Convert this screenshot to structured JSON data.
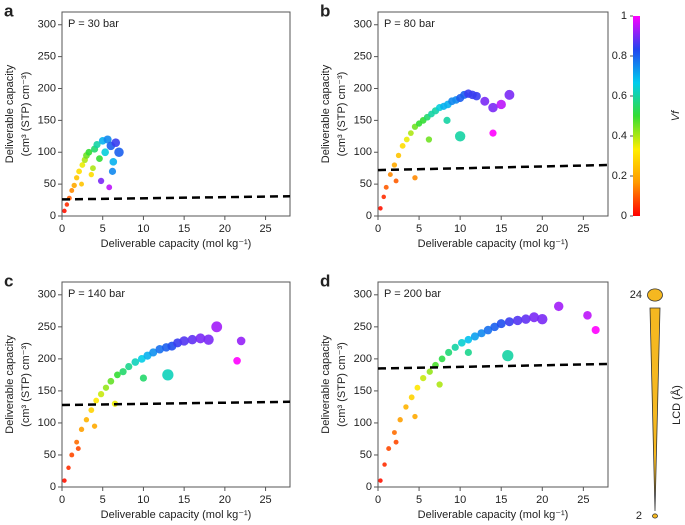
{
  "chart_data": [
    {
      "type": "scatter",
      "panel": "a",
      "title": "P = 30 bar",
      "x_label": "Deliverable capacity (mol kg⁻¹)",
      "y_label": [
        "Deliverable capacity",
        "(cm³ (STP) cm⁻³)"
      ],
      "xlim": [
        0,
        28
      ],
      "ylim": [
        0,
        320
      ],
      "xticks": [
        0,
        5,
        10,
        15,
        20,
        25
      ],
      "yticks": [
        0,
        50,
        100,
        150,
        200,
        250,
        300
      ],
      "x": [
        0.3,
        0.6,
        0.9,
        1.2,
        1.5,
        1.8,
        2.1,
        2.5,
        2.8,
        3.0,
        3.3,
        3.6,
        4.0,
        4.3,
        4.6,
        5.0,
        5.3,
        5.6,
        6.0,
        6.3,
        6.6,
        7.0,
        5.8,
        4.8,
        6.2,
        3.8,
        2.4
      ],
      "y": [
        8,
        18,
        28,
        40,
        48,
        60,
        70,
        80,
        88,
        95,
        100,
        65,
        105,
        112,
        90,
        118,
        100,
        120,
        110,
        85,
        115,
        100,
        45,
        55,
        70,
        75,
        50
      ],
      "vf": [
        0.02,
        0.05,
        0.1,
        0.15,
        0.2,
        0.25,
        0.3,
        0.35,
        0.4,
        0.45,
        0.5,
        0.3,
        0.55,
        0.6,
        0.5,
        0.7,
        0.65,
        0.75,
        0.8,
        0.7,
        0.85,
        0.8,
        0.95,
        0.9,
        0.75,
        0.4,
        0.25
      ],
      "lcd": [
        3,
        3,
        4,
        4,
        5,
        5,
        6,
        6,
        7,
        8,
        8,
        5,
        9,
        9,
        8,
        10,
        10,
        11,
        12,
        10,
        12,
        14,
        6,
        7,
        9,
        6,
        4
      ],
      "reference_line": {
        "x": [
          0,
          28
        ],
        "y": [
          26,
          31
        ]
      }
    },
    {
      "type": "scatter",
      "panel": "b",
      "title": "P = 80 bar",
      "x_label": "Deliverable capacity (mol kg⁻¹)",
      "y_label": [
        "Deliverable capacity",
        "(cm³ (STP) cm⁻³)"
      ],
      "xlim": [
        0,
        28
      ],
      "ylim": [
        0,
        320
      ],
      "xticks": [
        0,
        5,
        10,
        15,
        20,
        25
      ],
      "yticks": [
        0,
        50,
        100,
        150,
        200,
        250,
        300
      ],
      "x": [
        0.3,
        0.7,
        1.0,
        1.5,
        2.0,
        2.5,
        3.0,
        3.5,
        4.0,
        4.5,
        5.0,
        5.5,
        6.0,
        6.5,
        7.0,
        7.5,
        8.0,
        8.5,
        9.0,
        9.5,
        10,
        10.5,
        11,
        11.5,
        12,
        13,
        14,
        15,
        16,
        10,
        14,
        4.5,
        2.2,
        6.2,
        8.4
      ],
      "y": [
        12,
        30,
        45,
        65,
        80,
        95,
        110,
        120,
        130,
        140,
        145,
        150,
        155,
        160,
        165,
        170,
        172,
        175,
        180,
        182,
        185,
        190,
        192,
        190,
        188,
        180,
        170,
        175,
        190,
        125,
        130,
        60,
        55,
        120,
        150
      ],
      "vf": [
        0.02,
        0.05,
        0.1,
        0.15,
        0.2,
        0.25,
        0.3,
        0.35,
        0.4,
        0.45,
        0.5,
        0.5,
        0.55,
        0.6,
        0.6,
        0.65,
        0.7,
        0.7,
        0.75,
        0.75,
        0.8,
        0.8,
        0.85,
        0.85,
        0.85,
        0.9,
        0.9,
        0.95,
        0.9,
        0.6,
        1.0,
        0.15,
        0.1,
        0.45,
        0.6
      ],
      "lcd": [
        3,
        3,
        4,
        4,
        5,
        5,
        6,
        6,
        6,
        7,
        7,
        8,
        8,
        8,
        9,
        9,
        9,
        10,
        10,
        10,
        11,
        11,
        12,
        12,
        12,
        13,
        14,
        14,
        15,
        16,
        9,
        5,
        4,
        7,
        9
      ],
      "reference_line": {
        "x": [
          0,
          28
        ],
        "y": [
          72,
          80
        ]
      }
    },
    {
      "type": "scatter",
      "panel": "c",
      "title": "P = 140 bar",
      "x_label": "Deliverable capacity (mol kg⁻¹)",
      "y_label": [
        "Deliverable capacity",
        "(cm³ (STP) cm⁻³)"
      ],
      "xlim": [
        0,
        28
      ],
      "ylim": [
        0,
        320
      ],
      "xticks": [
        0,
        5,
        10,
        15,
        20,
        25
      ],
      "yticks": [
        0,
        50,
        100,
        150,
        200,
        250,
        300
      ],
      "x": [
        0.3,
        0.8,
        1.2,
        1.8,
        2.4,
        3.0,
        3.6,
        4.2,
        4.8,
        5.4,
        6.0,
        6.8,
        7.5,
        8.2,
        9.0,
        9.8,
        10.5,
        11.2,
        12.0,
        12.8,
        13.5,
        14.2,
        15.0,
        16.0,
        17.0,
        18.0,
        19.0,
        21.5,
        22.0,
        13.0,
        2.0,
        4.0,
        6.5,
        10.0
      ],
      "y": [
        10,
        30,
        50,
        70,
        90,
        105,
        120,
        135,
        145,
        155,
        165,
        175,
        180,
        188,
        195,
        200,
        205,
        210,
        215,
        218,
        220,
        225,
        228,
        230,
        232,
        230,
        250,
        197,
        228,
        175,
        60,
        95,
        130,
        170
      ],
      "vf": [
        0.02,
        0.05,
        0.08,
        0.12,
        0.18,
        0.22,
        0.28,
        0.32,
        0.38,
        0.42,
        0.46,
        0.5,
        0.55,
        0.58,
        0.62,
        0.66,
        0.7,
        0.74,
        0.78,
        0.8,
        0.82,
        0.85,
        0.87,
        0.88,
        0.9,
        0.9,
        0.93,
        1.0,
        0.92,
        0.62,
        0.08,
        0.2,
        0.35,
        0.55
      ],
      "lcd": [
        3,
        3,
        4,
        4,
        5,
        5,
        6,
        6,
        7,
        7,
        8,
        8,
        9,
        9,
        10,
        10,
        11,
        11,
        12,
        12,
        13,
        13,
        14,
        14,
        15,
        16,
        17,
        10,
        12,
        18,
        4,
        5,
        7,
        9
      ],
      "reference_line": {
        "x": [
          0,
          28
        ],
        "y": [
          128,
          133
        ]
      }
    },
    {
      "type": "scatter",
      "panel": "d",
      "title": "P = 200 bar",
      "x_label": "Deliverable capacity (mol kg⁻¹)",
      "y_label": [
        "Deliverable capacity",
        "(cm³ (STP) cm⁻³)"
      ],
      "xlim": [
        0,
        28
      ],
      "ylim": [
        0,
        320
      ],
      "xticks": [
        0,
        5,
        10,
        15,
        20,
        25
      ],
      "yticks": [
        0,
        50,
        100,
        150,
        200,
        250,
        300
      ],
      "x": [
        0.3,
        0.8,
        1.3,
        2.0,
        2.7,
        3.4,
        4.1,
        4.8,
        5.5,
        6.3,
        7.0,
        7.8,
        8.6,
        9.4,
        10.2,
        11.0,
        11.8,
        12.6,
        13.4,
        14.2,
        15.0,
        16.0,
        17.0,
        18.0,
        19.0,
        20.0,
        22.0,
        25.5,
        26.5,
        15.8,
        2.2,
        4.5,
        7.5,
        11.0
      ],
      "y": [
        10,
        35,
        60,
        85,
        105,
        125,
        140,
        155,
        170,
        180,
        190,
        200,
        210,
        218,
        225,
        230,
        235,
        240,
        245,
        250,
        255,
        258,
        260,
        262,
        265,
        262,
        282,
        268,
        245,
        205,
        70,
        110,
        160,
        210
      ],
      "vf": [
        0.02,
        0.05,
        0.08,
        0.12,
        0.18,
        0.22,
        0.28,
        0.32,
        0.38,
        0.42,
        0.48,
        0.52,
        0.56,
        0.6,
        0.64,
        0.68,
        0.72,
        0.75,
        0.78,
        0.8,
        0.82,
        0.85,
        0.87,
        0.88,
        0.9,
        0.9,
        0.93,
        0.95,
        1.0,
        0.6,
        0.08,
        0.2,
        0.4,
        0.58
      ],
      "lcd": [
        3,
        3,
        4,
        4,
        5,
        5,
        6,
        6,
        7,
        7,
        8,
        8,
        9,
        9,
        10,
        10,
        11,
        11,
        12,
        12,
        13,
        13,
        14,
        14,
        15,
        16,
        14,
        12,
        11,
        18,
        4,
        5,
        7,
        9
      ],
      "reference_line": {
        "x": [
          0,
          28
        ],
        "y": [
          185,
          192
        ]
      }
    }
  ],
  "colorbar": {
    "label": "Vf",
    "lim": [
      0,
      1
    ],
    "ticks": [
      0,
      0.2,
      0.4,
      0.6,
      0.8,
      1
    ],
    "colors": [
      "#ff0000",
      "#ff9900",
      "#ffee00",
      "#33dd33",
      "#00ccee",
      "#2244ee",
      "#ff00ff"
    ]
  },
  "size_legend": {
    "label": "LCD (Å)",
    "lim": [
      2,
      24
    ],
    "ticks": [
      2,
      24
    ],
    "color": "#f5b820"
  }
}
